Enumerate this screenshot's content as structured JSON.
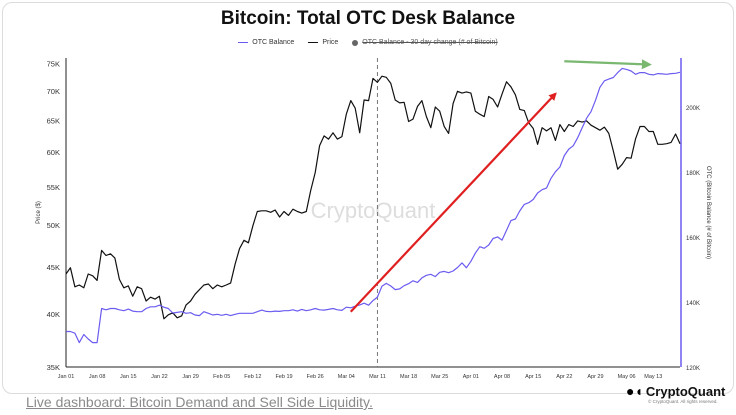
{
  "title": "Bitcoin: Total OTC Desk Balance",
  "legend": {
    "otc_label": "OTC Balance",
    "price_label": "Price",
    "change_label": "OTC Balance - 30 day change (# of Bitcoin)"
  },
  "watermark": "CryptoQuant",
  "logo": {
    "name": "CryptoQuant",
    "copyright": "© CryptoQuant. All rights reserved."
  },
  "footer": {
    "link_text": "Live dashboard: Bitcoin Demand and Sell Side Liquidity."
  },
  "colors": {
    "otc": "#6b5cf0",
    "price": "#111111",
    "red_arrow": "#e02020",
    "green_arrow": "#7ab870",
    "right_axis": "#6b5cf0"
  },
  "chart_data": {
    "type": "line",
    "x_ticks": [
      "Jan 01",
      "Jan 08",
      "Jan 15",
      "Jan 22",
      "Jan 29",
      "Feb 05",
      "Feb 12",
      "Feb 19",
      "Feb 26",
      "Mar 04",
      "Mar 11",
      "Mar 18",
      "Mar 25",
      "Apr 01",
      "Apr 08",
      "Apr 15",
      "Apr 22",
      "Apr 29",
      "May 06",
      "May 13"
    ],
    "x_days_span": [
      0,
      138
    ],
    "left_axis": {
      "label": "Price ($)",
      "scale": "log",
      "range": [
        35000,
        76000
      ],
      "ticks": [
        {
          "v": 35000,
          "t": "35K"
        },
        {
          "v": 40000,
          "t": "40K"
        },
        {
          "v": 45000,
          "t": "45K"
        },
        {
          "v": 50000,
          "t": "50K"
        },
        {
          "v": 55000,
          "t": "55K"
        },
        {
          "v": 60000,
          "t": "60K"
        },
        {
          "v": 65000,
          "t": "65K"
        },
        {
          "v": 70000,
          "t": "70K"
        },
        {
          "v": 75000,
          "t": "75K"
        }
      ]
    },
    "right_axis": {
      "label": "OTC (Bitcoin Balance (# of Bitcoin)",
      "range": [
        120000,
        215000
      ],
      "ticks": [
        {
          "v": 120000,
          "t": "120K"
        },
        {
          "v": 140000,
          "t": "140K"
        },
        {
          "v": 160000,
          "t": "160K"
        },
        {
          "v": 180000,
          "t": "180K"
        },
        {
          "v": 200000,
          "t": "200K"
        }
      ]
    },
    "vline_day": 70,
    "series": [
      {
        "name": "Price",
        "axis": "left",
        "points": [
          [
            0,
            44200
          ],
          [
            1,
            44900
          ],
          [
            2,
            42800
          ],
          [
            3,
            43000
          ],
          [
            4,
            42700
          ],
          [
            5,
            44200
          ],
          [
            6,
            44000
          ],
          [
            7,
            43500
          ],
          [
            8,
            46900
          ],
          [
            9,
            46300
          ],
          [
            10,
            46500
          ],
          [
            11,
            46000
          ],
          [
            12,
            43600
          ],
          [
            13,
            42700
          ],
          [
            14,
            42900
          ],
          [
            15,
            41800
          ],
          [
            16,
            42800
          ],
          [
            17,
            42600
          ],
          [
            18,
            41300
          ],
          [
            19,
            41700
          ],
          [
            20,
            41500
          ],
          [
            21,
            41800
          ],
          [
            22,
            39500
          ],
          [
            23,
            39900
          ],
          [
            24,
            40100
          ],
          [
            25,
            39600
          ],
          [
            26,
            39800
          ],
          [
            27,
            40900
          ],
          [
            28,
            41300
          ],
          [
            29,
            42000
          ],
          [
            30,
            42500
          ],
          [
            31,
            43000
          ],
          [
            32,
            43100
          ],
          [
            33,
            42600
          ],
          [
            34,
            43000
          ],
          [
            35,
            42800
          ],
          [
            36,
            43000
          ],
          [
            37,
            43200
          ],
          [
            38,
            45300
          ],
          [
            39,
            47100
          ],
          [
            40,
            48100
          ],
          [
            41,
            47800
          ],
          [
            42,
            49900
          ],
          [
            43,
            51700
          ],
          [
            44,
            51800
          ],
          [
            45,
            51800
          ],
          [
            46,
            51600
          ],
          [
            47,
            51900
          ],
          [
            48,
            51000
          ],
          [
            49,
            51700
          ],
          [
            50,
            51200
          ],
          [
            51,
            52000
          ],
          [
            52,
            51700
          ],
          [
            53,
            51500
          ],
          [
            54,
            51700
          ],
          [
            55,
            54500
          ],
          [
            56,
            57000
          ],
          [
            57,
            61000
          ],
          [
            58,
            62500
          ],
          [
            59,
            62000
          ],
          [
            60,
            63000
          ],
          [
            61,
            62000
          ],
          [
            62,
            62400
          ],
          [
            63,
            66000
          ],
          [
            64,
            68300
          ],
          [
            65,
            67000
          ],
          [
            66,
            63000
          ],
          [
            67,
            68400
          ],
          [
            68,
            68300
          ],
          [
            69,
            72200
          ],
          [
            70,
            71500
          ],
          [
            71,
            72600
          ],
          [
            72,
            72400
          ],
          [
            73,
            71300
          ],
          [
            74,
            68400
          ],
          [
            75,
            67900
          ],
          [
            76,
            68000
          ],
          [
            77,
            64800
          ],
          [
            78,
            65200
          ],
          [
            79,
            67300
          ],
          [
            80,
            68300
          ],
          [
            81,
            65600
          ],
          [
            82,
            63800
          ],
          [
            83,
            67200
          ],
          [
            84,
            66500
          ],
          [
            85,
            64000
          ],
          [
            86,
            62900
          ],
          [
            87,
            67800
          ],
          [
            88,
            69900
          ],
          [
            89,
            69600
          ],
          [
            90,
            69800
          ],
          [
            91,
            69600
          ],
          [
            92,
            66500
          ],
          [
            93,
            66000
          ],
          [
            94,
            65600
          ],
          [
            95,
            69000
          ],
          [
            96,
            68500
          ],
          [
            97,
            67200
          ],
          [
            98,
            69400
          ],
          [
            99,
            71600
          ],
          [
            100,
            70700
          ],
          [
            101,
            69300
          ],
          [
            102,
            66800
          ],
          [
            103,
            66600
          ],
          [
            104,
            64600
          ],
          [
            105,
            63700
          ],
          [
            106,
            61200
          ],
          [
            107,
            63800
          ],
          [
            108,
            63300
          ],
          [
            109,
            63800
          ],
          [
            110,
            61800
          ],
          [
            111,
            64300
          ],
          [
            112,
            63200
          ],
          [
            113,
            64300
          ],
          [
            114,
            64000
          ],
          [
            115,
            64900
          ],
          [
            116,
            64700
          ],
          [
            117,
            64900
          ],
          [
            118,
            64200
          ],
          [
            119,
            63800
          ],
          [
            120,
            63400
          ],
          [
            121,
            63900
          ],
          [
            122,
            62900
          ],
          [
            123,
            60200
          ],
          [
            124,
            57500
          ],
          [
            125,
            58200
          ],
          [
            126,
            59200
          ],
          [
            127,
            59100
          ],
          [
            128,
            62000
          ],
          [
            129,
            64000
          ],
          [
            130,
            64000
          ],
          [
            131,
            63200
          ],
          [
            132,
            63200
          ],
          [
            133,
            61200
          ],
          [
            134,
            61200
          ],
          [
            135,
            61300
          ],
          [
            136,
            61500
          ],
          [
            137,
            62800
          ],
          [
            138,
            61300
          ]
        ]
      },
      {
        "name": "OTC Balance",
        "axis": "right",
        "points": [
          [
            0,
            130900
          ],
          [
            1,
            130900
          ],
          [
            2,
            130400
          ],
          [
            3,
            127500
          ],
          [
            4,
            130000
          ],
          [
            5,
            128600
          ],
          [
            6,
            127500
          ],
          [
            7,
            127500
          ],
          [
            8,
            138000
          ],
          [
            9,
            137600
          ],
          [
            10,
            138000
          ],
          [
            11,
            138000
          ],
          [
            12,
            137600
          ],
          [
            13,
            137300
          ],
          [
            14,
            137800
          ],
          [
            15,
            137200
          ],
          [
            16,
            137000
          ],
          [
            17,
            137000
          ],
          [
            18,
            138000
          ],
          [
            19,
            138500
          ],
          [
            20,
            138500
          ],
          [
            21,
            139000
          ],
          [
            22,
            138400
          ],
          [
            23,
            138000
          ],
          [
            24,
            136600
          ],
          [
            25,
            136800
          ],
          [
            26,
            137000
          ],
          [
            27,
            136500
          ],
          [
            28,
            136700
          ],
          [
            29,
            136000
          ],
          [
            30,
            135800
          ],
          [
            31,
            137000
          ],
          [
            32,
            136500
          ],
          [
            33,
            136000
          ],
          [
            34,
            136200
          ],
          [
            35,
            135900
          ],
          [
            36,
            136200
          ],
          [
            37,
            135800
          ],
          [
            38,
            136200
          ],
          [
            39,
            136500
          ],
          [
            40,
            136500
          ],
          [
            41,
            136500
          ],
          [
            42,
            136500
          ],
          [
            43,
            137000
          ],
          [
            44,
            137500
          ],
          [
            45,
            137100
          ],
          [
            46,
            137000
          ],
          [
            47,
            137200
          ],
          [
            48,
            137100
          ],
          [
            49,
            137300
          ],
          [
            50,
            137300
          ],
          [
            51,
            137600
          ],
          [
            52,
            137200
          ],
          [
            53,
            137700
          ],
          [
            54,
            137300
          ],
          [
            55,
            137600
          ],
          [
            56,
            138000
          ],
          [
            57,
            137600
          ],
          [
            58,
            137500
          ],
          [
            59,
            137700
          ],
          [
            60,
            138000
          ],
          [
            61,
            137600
          ],
          [
            62,
            137400
          ],
          [
            63,
            138400
          ],
          [
            64,
            138200
          ],
          [
            65,
            138700
          ],
          [
            66,
            139100
          ],
          [
            67,
            139600
          ],
          [
            68,
            139000
          ],
          [
            69,
            140400
          ],
          [
            70,
            141500
          ],
          [
            71,
            144800
          ],
          [
            72,
            145700
          ],
          [
            73,
            144900
          ],
          [
            74,
            143800
          ],
          [
            75,
            144000
          ],
          [
            76,
            145000
          ],
          [
            77,
            145600
          ],
          [
            78,
            146500
          ],
          [
            79,
            146000
          ],
          [
            80,
            147400
          ],
          [
            81,
            148200
          ],
          [
            82,
            148500
          ],
          [
            83,
            147800
          ],
          [
            84,
            149100
          ],
          [
            85,
            149400
          ],
          [
            86,
            149000
          ],
          [
            87,
            149500
          ],
          [
            88,
            150600
          ],
          [
            89,
            152000
          ],
          [
            90,
            150500
          ],
          [
            91,
            152500
          ],
          [
            92,
            155000
          ],
          [
            93,
            157000
          ],
          [
            94,
            156500
          ],
          [
            95,
            157500
          ],
          [
            96,
            159500
          ],
          [
            97,
            160000
          ],
          [
            98,
            159000
          ],
          [
            99,
            162000
          ],
          [
            100,
            165000
          ],
          [
            101,
            165500
          ],
          [
            102,
            168000
          ],
          [
            103,
            170000
          ],
          [
            104,
            170500
          ],
          [
            105,
            171500
          ],
          [
            106,
            173500
          ],
          [
            107,
            174500
          ],
          [
            108,
            175000
          ],
          [
            109,
            178000
          ],
          [
            110,
            180000
          ],
          [
            111,
            181500
          ],
          [
            112,
            185000
          ],
          [
            113,
            187000
          ],
          [
            114,
            188000
          ],
          [
            115,
            190500
          ],
          [
            116,
            193500
          ],
          [
            117,
            196500
          ],
          [
            118,
            198500
          ],
          [
            119,
            202000
          ],
          [
            120,
            206000
          ],
          [
            121,
            208000
          ],
          [
            122,
            208500
          ],
          [
            123,
            209000
          ],
          [
            124,
            210500
          ],
          [
            125,
            211800
          ],
          [
            126,
            211500
          ],
          [
            127,
            211000
          ],
          [
            128,
            210000
          ],
          [
            129,
            210500
          ],
          [
            130,
            210500
          ],
          [
            131,
            210000
          ],
          [
            132,
            209800
          ],
          [
            133,
            210200
          ],
          [
            134,
            210100
          ],
          [
            135,
            210000
          ],
          [
            136,
            210200
          ],
          [
            137,
            210300
          ],
          [
            138,
            210600
          ]
        ]
      }
    ],
    "annotations": {
      "red_arrow": [
        [
          64,
          137000
        ],
        [
          110,
          204000
        ]
      ],
      "green_arrow": [
        [
          112,
          214000
        ],
        [
          131,
          213000
        ]
      ]
    },
    "grid": false
  }
}
